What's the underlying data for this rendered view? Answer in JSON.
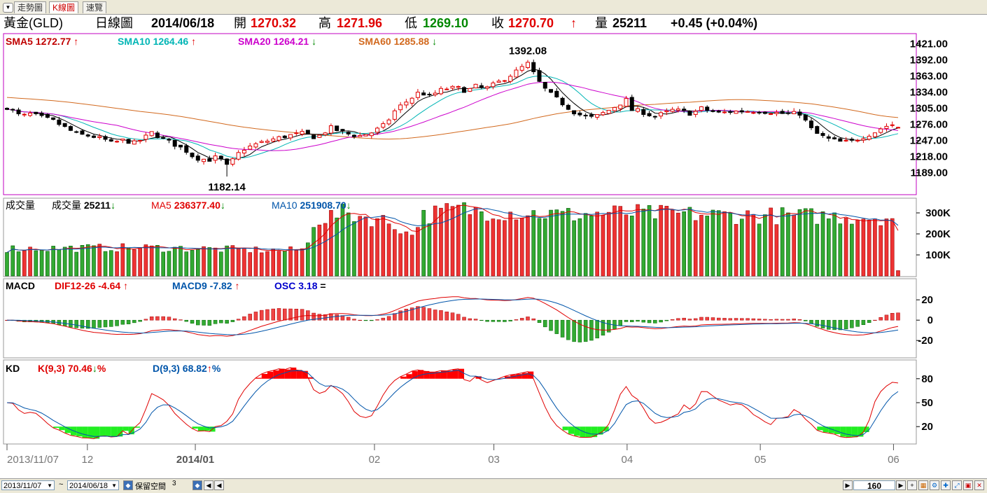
{
  "tabs": [
    {
      "label": "走勢圖",
      "active": false
    },
    {
      "label": "K線圖",
      "active": true
    },
    {
      "label": "速覽",
      "active": false
    }
  ],
  "header": {
    "symbol": "黃金(GLD)",
    "period": "日線圖",
    "date": "2014/06/18",
    "open_label": "開",
    "open": "1270.32",
    "high_label": "高",
    "high": "1271.96",
    "low_label": "低",
    "low": "1269.10",
    "close_label": "收",
    "close": "1270.70",
    "close_arrow": "↑",
    "vol_label": "量",
    "volume": "25211",
    "change": "+0.45 (+0.04%)"
  },
  "colors": {
    "up": "#e00000",
    "down": "#008800",
    "sma5": "#000000",
    "sma10": "#00b5b5",
    "sma20": "#cc00cc",
    "sma60": "#d2691e",
    "vol_ma5": "#e00000",
    "vol_ma10": "#0055aa",
    "dif": "#e00000",
    "macd": "#0055aa",
    "k": "#e00000",
    "d": "#0055aa",
    "border_price": "#c000c0"
  },
  "chart_data": {
    "type": "candlestick",
    "x_range": [
      "2013/11/07",
      "2014/06/18"
    ],
    "x_ticks": [
      "2013/11/07",
      "12",
      "2014/01",
      "02",
      "03",
      "04",
      "05",
      "06"
    ],
    "n_bars": 155,
    "price": {
      "legend": [
        {
          "label": "SMA5",
          "value": "1272.77",
          "arrow": "↑"
        },
        {
          "label": "SMA10",
          "value": "1264.46",
          "arrow": "↑"
        },
        {
          "label": "SMA20",
          "value": "1264.21",
          "arrow": "↓"
        },
        {
          "label": "SMA60",
          "value": "1285.88",
          "arrow": "↓"
        }
      ],
      "y_ticks": [
        "1421.00",
        "1392.00",
        "1363.00",
        "1334.00",
        "1305.00",
        "1276.00",
        "1247.00",
        "1218.00",
        "1189.00"
      ],
      "ylim": [
        1152,
        1437
      ],
      "annotations": [
        {
          "text": "1392.08",
          "at_index": 111,
          "value": 1392.08,
          "kind": "high"
        },
        {
          "text": "1182.14",
          "at_index": 47,
          "value": 1182.14,
          "kind": "low"
        }
      ],
      "anchors": [
        [
          0,
          1307
        ],
        [
          3,
          1290
        ],
        [
          5,
          1295
        ],
        [
          8,
          1287
        ],
        [
          10,
          1282
        ],
        [
          12,
          1272
        ],
        [
          15,
          1258
        ],
        [
          18,
          1255
        ],
        [
          21,
          1248
        ],
        [
          22,
          1242
        ],
        [
          25,
          1248
        ],
        [
          27,
          1242
        ],
        [
          29,
          1250
        ],
        [
          31,
          1262
        ],
        [
          33,
          1250
        ],
        [
          35,
          1243
        ],
        [
          38,
          1230
        ],
        [
          40,
          1216
        ],
        [
          43,
          1212
        ],
        [
          45,
          1218
        ],
        [
          47,
          1200
        ],
        [
          50,
          1230
        ],
        [
          53,
          1240
        ],
        [
          57,
          1250
        ],
        [
          60,
          1256
        ],
        [
          63,
          1260
        ],
        [
          66,
          1252
        ],
        [
          69,
          1270
        ],
        [
          72,
          1260
        ],
        [
          75,
          1255
        ],
        [
          78,
          1262
        ],
        [
          81,
          1278
        ],
        [
          82,
          1295
        ],
        [
          84,
          1310
        ],
        [
          86,
          1322
        ],
        [
          88,
          1335
        ],
        [
          90,
          1326
        ],
        [
          93,
          1340
        ],
        [
          96,
          1342
        ],
        [
          98,
          1336
        ],
        [
          100,
          1345
        ],
        [
          102,
          1340
        ],
        [
          105,
          1353
        ],
        [
          108,
          1368
        ],
        [
          110,
          1380
        ],
        [
          111,
          1386
        ],
        [
          112,
          1372
        ],
        [
          114,
          1345
        ],
        [
          116,
          1330
        ],
        [
          119,
          1310
        ],
        [
          121,
          1298
        ],
        [
          123,
          1290
        ],
        [
          125,
          1288
        ],
        [
          128,
          1300
        ],
        [
          130,
          1310
        ],
        [
          132,
          1320
        ],
        [
          133,
          1302
        ],
        [
          135,
          1300
        ],
        [
          138,
          1290
        ],
        [
          140,
          1296
        ],
        [
          142,
          1302
        ],
        [
          144,
          1300
        ],
        [
          146,
          1295
        ],
        [
          148,
          1305
        ],
        [
          150,
          1300
        ],
        [
          152,
          1296
        ],
        [
          154,
          1299
        ],
        [
          157,
          1300
        ],
        [
          160,
          1300
        ],
        [
          163,
          1298
        ],
        [
          166,
          1295
        ],
        [
          169,
          1296
        ],
        [
          170,
          1285
        ],
        [
          172,
          1262
        ],
        [
          175,
          1250
        ],
        [
          178,
          1244
        ],
        [
          180,
          1245
        ],
        [
          182,
          1252
        ],
        [
          185,
          1262
        ],
        [
          187,
          1272
        ],
        [
          189,
          1276
        ],
        [
          190,
          1272
        ]
      ]
    },
    "volume": {
      "legend_title": "成交量",
      "legend": [
        {
          "label": "成交量",
          "value": "25211",
          "arrow": "↓"
        },
        {
          "label": "MA5",
          "value": "236377.40",
          "arrow": "↓"
        },
        {
          "label": "MA10",
          "value": "251908.70",
          "arrow": "↓"
        }
      ],
      "y_ticks": [
        "300K",
        "200K",
        "100K"
      ],
      "ylim": [
        0,
        360000
      ],
      "anchors": [
        [
          0,
          130000
        ],
        [
          30,
          135000
        ],
        [
          60,
          120000
        ],
        [
          64,
          130000
        ],
        [
          65,
          260000
        ],
        [
          72,
          300000
        ],
        [
          80,
          265000
        ],
        [
          84,
          230000
        ],
        [
          86,
          180000
        ],
        [
          88,
          280000
        ],
        [
          96,
          320000
        ],
        [
          100,
          310000
        ],
        [
          110,
          300000
        ],
        [
          120,
          290000
        ],
        [
          130,
          300000
        ],
        [
          150,
          290000
        ],
        [
          170,
          285000
        ],
        [
          189,
          280000
        ],
        [
          190,
          25211
        ]
      ]
    },
    "macd": {
      "legend_title": "MACD",
      "legend": [
        {
          "label": "DIF12-26",
          "value": "-4.64",
          "arrow": "↑"
        },
        {
          "label": "MACD9",
          "value": "-7.82",
          "arrow": "↑"
        },
        {
          "label": "OSC",
          "value": "3.18",
          "arrow": "="
        }
      ],
      "y_ticks": [
        "20",
        "0",
        "-20"
      ],
      "ylim": [
        -35,
        38
      ]
    },
    "kd": {
      "legend_title": "KD",
      "legend": [
        {
          "label": "K(9,3)",
          "value": "70.46",
          "arrow": "↓",
          "suffix": "%"
        },
        {
          "label": "D(9,3)",
          "value": "68.82",
          "arrow": "↑",
          "suffix": "%"
        }
      ],
      "y_ticks": [
        "80",
        "50",
        "20"
      ],
      "ylim": [
        0,
        100
      ]
    }
  },
  "bottom": {
    "start_date": "2013/11/07",
    "tilde": "~",
    "end_date": "2014/06/18",
    "reserve_label": "保留空間",
    "reserve_value": "3",
    "bar_count": "160"
  }
}
